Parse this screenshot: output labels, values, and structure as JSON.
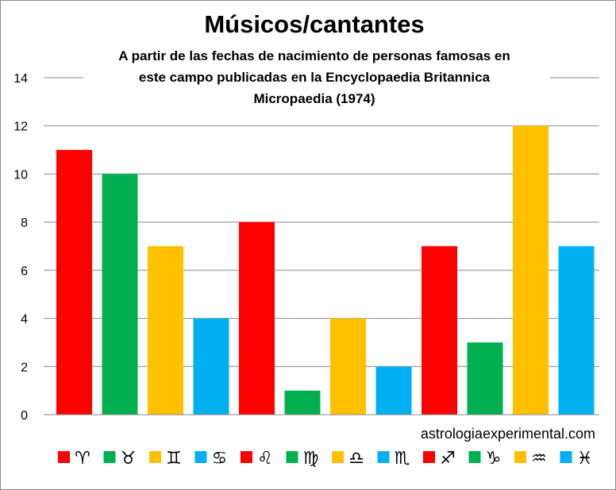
{
  "chart_data": {
    "type": "bar",
    "title": "Músicos/cantantes",
    "subtitle": [
      "A partir de las fechas de nacimiento de personas famosas en",
      "este campo publicadas en la Encyclopaedia Britannica",
      "Micropaedia (1974)"
    ],
    "categories": [
      "♈︎",
      "♉︎",
      "♊︎",
      "♋︎",
      "♌︎",
      "♍︎",
      "♎︎",
      "♏︎",
      "♐︎",
      "♑︎",
      "♒︎",
      "♓︎"
    ],
    "category_names": [
      "Aries",
      "Taurus",
      "Gemini",
      "Cancer",
      "Leo",
      "Virgo",
      "Libra",
      "Scorpio",
      "Sagittarius",
      "Capricorn",
      "Aquarius",
      "Pisces"
    ],
    "values": [
      11,
      10,
      7,
      4,
      8,
      1,
      4,
      2,
      7,
      3,
      12,
      7
    ],
    "colors": [
      "#FF0000",
      "#00B050",
      "#FFC000",
      "#00B0F0",
      "#FF0000",
      "#00B050",
      "#FFC000",
      "#00B0F0",
      "#FF0000",
      "#00B050",
      "#FFC000",
      "#00B0F0"
    ],
    "ylim": [
      0,
      14
    ],
    "yticks": [
      0,
      2,
      4,
      6,
      8,
      10,
      12,
      14
    ],
    "grid": true,
    "legend": "bottom",
    "xlabel": "",
    "ylabel": ""
  },
  "watermark": "astrologiaexperimental.com"
}
